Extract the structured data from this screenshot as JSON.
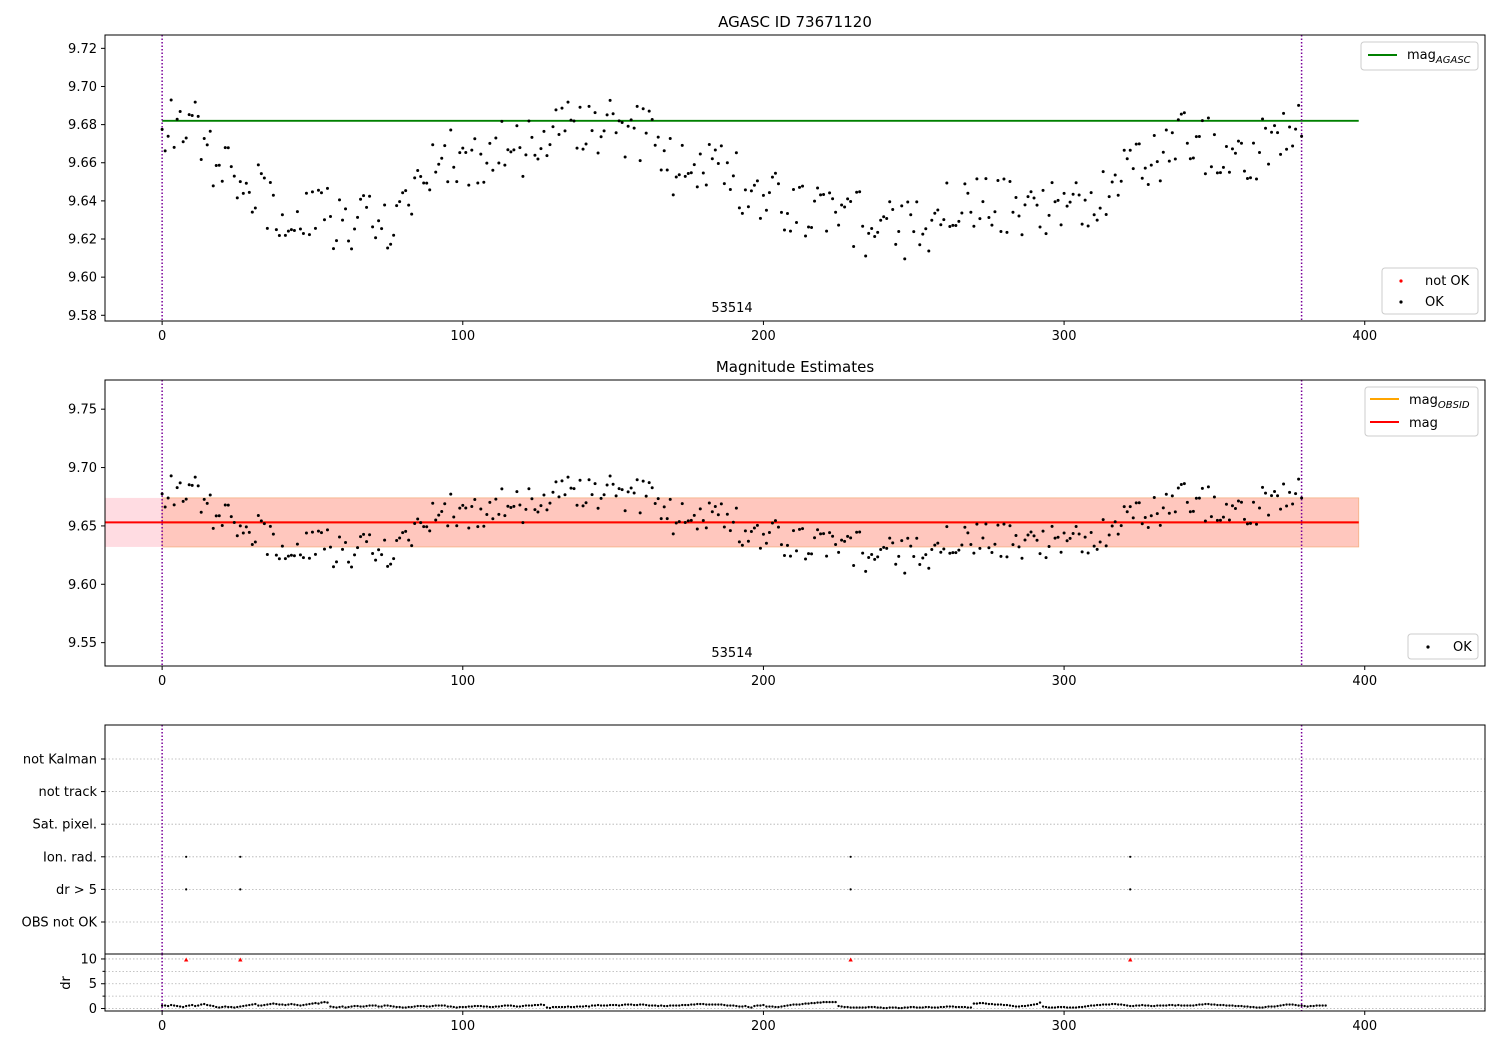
{
  "chart_data": [
    {
      "type": "scatter",
      "title": "AGASC ID 73671120",
      "annotation": "53514",
      "xlim": [
        -19,
        440
      ],
      "ylim": [
        9.577,
        9.727
      ],
      "x_ticks": [
        0,
        100,
        200,
        300,
        400
      ],
      "x_tick_labels": [
        "0",
        "100",
        "200",
        "300",
        "400"
      ],
      "y_ticks": [
        9.58,
        9.6,
        9.62,
        9.64,
        9.66,
        9.68,
        9.7,
        9.72
      ],
      "y_tick_labels": [
        "9.58",
        "9.60",
        "9.62",
        "9.64",
        "9.66",
        "9.68",
        "9.70",
        "9.72"
      ],
      "vlines": [
        0,
        379
      ],
      "hline": {
        "name": "mag_AGASC",
        "value": 9.682,
        "x_range": [
          0,
          398
        ],
        "color": "#008000"
      },
      "colors": {
        "ok": "#000000",
        "not_ok": "#ff0000",
        "vline": "#7a0099"
      },
      "legend_top": {
        "label_main": "mag",
        "label_sub": "AGASC",
        "placement": "top-right"
      },
      "legend_bottom": {
        "not_ok_label": "not OK",
        "ok_label": "OK",
        "placement": "lower-right"
      },
      "series": [
        {
          "name": "OK",
          "anchors": [
            [
              0,
              9.675
            ],
            [
              8,
              9.688
            ],
            [
              12,
              9.677
            ],
            [
              20,
              9.656
            ],
            [
              28,
              9.648
            ],
            [
              38,
              9.636
            ],
            [
              48,
              9.638
            ],
            [
              58,
              9.63
            ],
            [
              65,
              9.627
            ],
            [
              75,
              9.628
            ],
            [
              85,
              9.65
            ],
            [
              95,
              9.665
            ],
            [
              105,
              9.66
            ],
            [
              115,
              9.672
            ],
            [
              125,
              9.665
            ],
            [
              132,
              9.684
            ],
            [
              140,
              9.676
            ],
            [
              155,
              9.678
            ],
            [
              165,
              9.672
            ],
            [
              172,
              9.652
            ],
            [
              180,
              9.664
            ],
            [
              188,
              9.655
            ],
            [
              195,
              9.642
            ],
            [
              205,
              9.642
            ],
            [
              215,
              9.632
            ],
            [
              225,
              9.638
            ],
            [
              235,
              9.625
            ],
            [
              248,
              9.624
            ],
            [
              262,
              9.635
            ],
            [
              275,
              9.638
            ],
            [
              285,
              9.635
            ],
            [
              292,
              9.632
            ],
            [
              300,
              9.636
            ],
            [
              312,
              9.645
            ],
            [
              322,
              9.655
            ],
            [
              332,
              9.665
            ],
            [
              340,
              9.675
            ],
            [
              348,
              9.668
            ],
            [
              358,
              9.66
            ],
            [
              368,
              9.67
            ],
            [
              379,
              9.675
            ]
          ],
          "noise": 0.016
        }
      ]
    },
    {
      "type": "scatter",
      "title": "Magnitude Estimates",
      "annotation": "53514",
      "xlim": [
        -19,
        440
      ],
      "ylim": [
        9.53,
        9.775
      ],
      "x_ticks": [
        0,
        100,
        200,
        300,
        400
      ],
      "x_tick_labels": [
        "0",
        "100",
        "200",
        "300",
        "400"
      ],
      "y_ticks": [
        9.55,
        9.6,
        9.65,
        9.7,
        9.75
      ],
      "y_tick_labels": [
        "9.55",
        "9.60",
        "9.65",
        "9.70",
        "9.75"
      ],
      "vlines": [
        0,
        379
      ],
      "mag": {
        "value": 9.653,
        "band": [
          9.632,
          9.674
        ],
        "x_range": [
          -19,
          398
        ],
        "color": "#ff0000",
        "band_color": "#ffc0cb"
      },
      "mag_obsid": {
        "value": 9.653,
        "band": [
          9.632,
          9.674
        ],
        "x_range": [
          0,
          398
        ],
        "color": "#ffa500",
        "band_color": "#ffa07a"
      },
      "legend_top": {
        "obsid_main": "mag",
        "obsid_sub": "OBSID",
        "mag_label": "mag",
        "placement": "top-right"
      },
      "legend_bottom": {
        "ok_label": "OK",
        "placement": "lower-right"
      },
      "series": [
        {
          "name": "OK",
          "same_as_panel": 0
        }
      ]
    },
    {
      "type": "scatter",
      "xlim": [
        -19,
        440
      ],
      "x_ticks": [
        0,
        100,
        200,
        300,
        400
      ],
      "x_tick_labels": [
        "0",
        "100",
        "200",
        "300",
        "400"
      ],
      "vlines": [
        0,
        379
      ],
      "flag_rows": [
        "not Kalman",
        "not track",
        "Sat. pixel.",
        "Ion. rad.",
        "dr > 5",
        "OBS not OK"
      ],
      "flag_events": {
        "Ion. rad.": [
          8,
          26,
          229,
          322
        ],
        "dr > 5": [
          8,
          26,
          229,
          322
        ]
      },
      "dr": {
        "ylabel": "dr",
        "ylim": [
          -0.5,
          11
        ],
        "y_ticks": [
          0,
          5,
          10
        ],
        "y_tick_labels": [
          "0",
          "5",
          "10"
        ],
        "minor_y_ticks": [
          2.5,
          7.5
        ],
        "values": [
          0.6,
          0.6,
          0.5,
          0.7,
          0.6,
          0.5,
          0.4,
          0.3,
          0.5,
          0.6,
          0.7,
          0.5,
          0.6,
          0.8,
          0.9,
          0.7,
          0.6,
          0.5,
          0.3,
          0.2,
          0.3,
          0.4,
          0.3,
          0.3,
          0.2,
          0.3,
          0.4,
          0.5,
          0.6,
          0.7,
          0.8,
          0.9,
          0.6,
          0.6,
          0.7,
          0.8,
          0.9,
          1.0,
          0.9,
          0.8,
          0.8,
          0.7,
          0.8,
          0.9,
          0.8,
          0.7,
          0.6,
          0.7,
          0.8,
          0.9,
          1.0,
          1.1,
          1.0,
          1.2,
          1.3,
          1.2,
          0.4,
          0.3,
          0.2,
          0.3,
          0.4,
          0.2,
          0.3,
          0.4,
          0.5,
          0.5,
          0.4,
          0.4,
          0.5,
          0.6,
          0.6,
          0.6,
          0.4,
          0.4,
          0.6,
          0.6,
          0.5,
          0.4,
          0.3,
          0.3,
          0.2,
          0.2,
          0.3,
          0.3,
          0.4,
          0.5,
          0.5,
          0.5,
          0.4,
          0.4,
          0.5,
          0.6,
          0.6,
          0.6,
          0.6,
          0.4,
          0.4,
          0.3,
          0.2,
          0.3,
          0.3,
          0.3,
          0.4,
          0.4,
          0.5,
          0.5,
          0.5,
          0.4,
          0.4,
          0.3,
          0.3,
          0.4,
          0.4,
          0.5,
          0.6,
          0.6,
          0.6,
          0.5,
          0.4,
          0.4,
          0.5,
          0.6,
          0.6,
          0.6,
          0.7,
          0.7,
          0.8,
          0.7,
          0.2,
          0.1,
          0.3,
          0.3,
          0.3,
          0.3,
          0.3,
          0.4,
          0.3,
          0.3,
          0.4,
          0.4,
          0.4,
          0.5,
          0.4,
          0.6,
          0.6,
          0.7,
          0.6,
          0.6,
          0.6,
          0.7,
          0.7,
          0.7,
          0.6,
          0.7,
          0.8,
          0.8,
          0.8,
          0.7,
          0.7,
          0.8,
          0.8,
          0.7,
          0.6,
          0.6,
          0.6,
          0.5,
          0.6,
          0.5,
          0.5,
          0.6,
          0.6,
          0.6,
          0.6,
          0.7,
          0.7,
          0.7,
          0.8,
          0.8,
          0.9,
          0.9,
          0.9,
          0.8,
          0.8,
          0.8,
          0.8,
          0.8,
          0.8,
          0.7,
          0.6,
          0.6,
          0.6,
          0.5,
          0.4,
          0.4,
          0.5,
          0.3,
          0.2,
          0.5,
          0.6,
          0.6,
          0.7,
          0.4,
          0.4,
          0.4,
          0.3,
          0.3,
          0.4,
          0.5,
          0.6,
          0.7,
          0.8,
          0.8,
          0.8,
          0.9,
          1.0,
          1.0,
          1.1,
          1.1,
          1.2,
          1.2,
          1.3,
          1.3,
          1.3,
          1.3,
          1.3,
          0.5,
          0.4,
          0.3,
          0.3,
          0.2,
          0.2,
          0.2,
          0.2,
          0.2,
          0.2,
          0.3,
          0.3,
          0.3,
          0.2,
          0.2,
          0.1,
          0.1,
          0.2,
          0.2,
          0.2,
          0.1,
          0.1,
          0.2,
          0.2,
          0.3,
          0.3,
          0.2,
          0.2,
          0.2,
          0.3,
          0.3,
          0.2,
          0.2,
          0.2,
          0.3,
          0.3,
          0.4,
          0.4,
          0.4,
          0.3,
          0.3,
          0.3,
          0.3,
          0.2,
          0.2,
          1.0,
          1.0,
          1.1,
          1.1,
          1.0,
          0.9,
          0.9,
          0.8,
          0.8,
          0.8,
          0.7,
          0.7,
          0.6,
          0.5,
          0.4,
          0.4,
          0.5,
          0.5,
          0.6,
          0.7,
          0.8,
          0.9,
          1.2,
          0.4,
          0.3,
          0.2,
          0.2,
          0.2,
          0.3,
          0.3,
          0.3,
          0.2,
          0.2,
          0.2,
          0.2,
          0.3,
          0.3,
          0.4,
          0.5,
          0.6,
          0.6,
          0.7,
          0.7,
          0.8,
          0.8,
          0.8,
          0.9,
          0.9,
          0.8,
          0.8,
          0.7,
          0.6,
          0.5,
          0.5,
          0.6,
          0.6,
          0.7,
          0.6,
          0.6,
          0.5,
          0.5,
          0.6,
          0.6,
          0.6,
          0.6,
          0.7,
          0.7,
          0.6,
          0.7,
          0.6,
          0.6,
          0.6,
          0.6,
          0.6,
          0.7,
          0.8,
          0.8,
          0.9,
          0.9,
          0.8,
          0.8,
          0.7,
          0.7,
          0.7,
          0.6,
          0.6,
          0.6,
          0.5,
          0.5,
          0.5,
          0.4,
          0.4,
          0.3,
          0.3,
          0.2,
          0.2,
          0.2,
          0.3,
          0.4,
          0.4,
          0.4,
          0.5,
          0.6,
          0.7,
          0.8,
          0.8,
          0.8,
          0.7,
          0.6,
          0.6,
          0.5,
          0.4,
          0.5,
          0.5,
          0.6,
          0.6,
          0.6,
          0.6
        ],
        "flagged": [
          {
            "x": 8,
            "y": 9.8
          },
          {
            "x": 26,
            "y": 9.8
          },
          {
            "x": 229,
            "y": 9.8
          },
          {
            "x": 322,
            "y": 9.8
          }
        ]
      }
    }
  ]
}
